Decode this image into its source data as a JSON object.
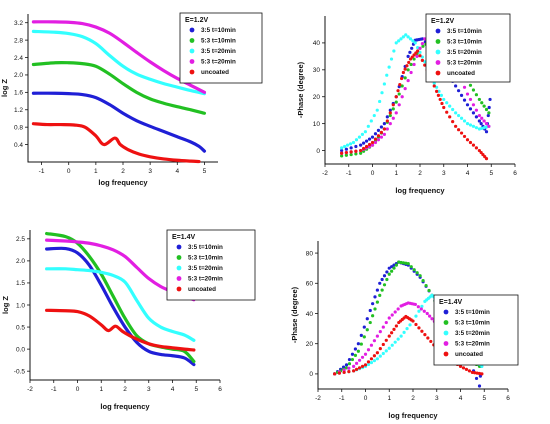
{
  "chart_data": [
    {
      "type": "line",
      "xlabel": "log frequency",
      "ylabel": "log Z",
      "xlim": [
        -1.5,
        5.5
      ],
      "ylim": [
        0,
        3.4
      ],
      "xticks": [
        -1,
        0,
        1,
        2,
        3,
        4,
        5
      ],
      "yticks": [
        0.4,
        0.8,
        1.2,
        1.6,
        2.0,
        2.4,
        2.8,
        3.2
      ],
      "legend_title": "E=1.2V",
      "legend_position": "top-right",
      "series": [
        {
          "name": "3:5 t=10min",
          "color": "#1f1fd6",
          "x": [
            -1.3,
            -0.5,
            0,
            0.5,
            1,
            1.5,
            2,
            2.5,
            3,
            3.5,
            4,
            4.5,
            4.8,
            5.0
          ],
          "y": [
            1.58,
            1.58,
            1.57,
            1.55,
            1.48,
            1.32,
            1.12,
            0.95,
            0.82,
            0.7,
            0.58,
            0.46,
            0.36,
            0.25
          ]
        },
        {
          "name": "5:3 t=10min",
          "color": "#22c022",
          "x": [
            -1.3,
            -0.5,
            0,
            0.5,
            1,
            1.5,
            2,
            2.5,
            3,
            3.5,
            4,
            4.5,
            5.0
          ],
          "y": [
            2.24,
            2.28,
            2.28,
            2.26,
            2.2,
            2.02,
            1.8,
            1.6,
            1.45,
            1.35,
            1.27,
            1.2,
            1.12
          ]
        },
        {
          "name": "3:5 t=20min",
          "color": "#33ffff",
          "x": [
            -1.3,
            -0.5,
            0,
            0.5,
            1,
            1.5,
            2,
            2.5,
            3,
            3.5,
            4,
            4.5,
            5.0
          ],
          "y": [
            3.0,
            2.98,
            2.95,
            2.88,
            2.72,
            2.45,
            2.2,
            2.02,
            1.9,
            1.8,
            1.72,
            1.64,
            1.57
          ]
        },
        {
          "name": "5:3 t=20min",
          "color": "#e21ee2",
          "x": [
            -1.3,
            -0.5,
            0,
            0.5,
            1,
            1.5,
            2,
            2.5,
            3,
            3.5,
            4,
            4.5,
            5.0
          ],
          "y": [
            3.22,
            3.22,
            3.21,
            3.18,
            3.1,
            2.96,
            2.75,
            2.52,
            2.3,
            2.1,
            1.92,
            1.76,
            1.6
          ]
        },
        {
          "name": "uncoated",
          "color": "#ee1111",
          "x": [
            -1.3,
            -0.8,
            -0.3,
            0.2,
            0.6,
            1.0,
            1.3,
            1.7,
            1.9,
            2.2,
            2.6,
            3.0,
            3.5,
            4.0,
            4.5,
            4.8
          ],
          "y": [
            0.88,
            0.86,
            0.86,
            0.85,
            0.8,
            0.6,
            0.4,
            0.55,
            0.4,
            0.28,
            0.18,
            0.12,
            0.07,
            0.04,
            0.02,
            0.01
          ]
        }
      ]
    },
    {
      "type": "scatter",
      "xlabel": "log frequency",
      "ylabel": "-Phase (degree)",
      "xlim": [
        -2,
        6
      ],
      "ylim": [
        -5,
        50
      ],
      "xticks": [
        -2,
        -1,
        0,
        1,
        2,
        3,
        4,
        5,
        6
      ],
      "yticks": [
        0,
        10,
        20,
        30,
        40
      ],
      "legend_title": "E=1.2V",
      "legend_position": "top-right",
      "series": [
        {
          "name": "3:5 t=10min",
          "color": "#1f1fd6",
          "x": [
            -1.3,
            -0.5,
            0,
            0.5,
            1,
            1.5,
            1.8,
            2.1,
            2.6,
            3,
            3.5,
            4,
            4.5,
            4.8,
            4.95
          ],
          "y": [
            0,
            2,
            5,
            10,
            20,
            35,
            41,
            41.5,
            37,
            31,
            24,
            17,
            11,
            7,
            19
          ]
        },
        {
          "name": "5:3 t=10min",
          "color": "#22c022",
          "x": [
            -1.3,
            -0.5,
            0,
            0.5,
            1,
            1.5,
            2,
            2.5,
            3,
            3.5,
            4,
            4.5,
            4.9
          ],
          "y": [
            -2,
            -1,
            2,
            8,
            18,
            30,
            38,
            41,
            39,
            33,
            26,
            19,
            14
          ]
        },
        {
          "name": "3:5 t=20min",
          "color": "#33ffff",
          "x": [
            -1.3,
            -0.8,
            -0.3,
            0.2,
            0.6,
            1.0,
            1.4,
            1.8,
            2.2,
            2.6,
            3,
            3.5,
            4,
            4.5,
            4.9
          ],
          "y": [
            1,
            3,
            7,
            15,
            28,
            40,
            43,
            40,
            33,
            25,
            19,
            14,
            10,
            8,
            9
          ]
        },
        {
          "name": "5:3 t=20min",
          "color": "#e21ee2",
          "x": [
            -1.3,
            -0.5,
            0,
            0.5,
            1,
            1.5,
            2,
            2.4,
            2.7,
            3,
            3.5,
            4,
            4.5,
            4.9
          ],
          "y": [
            -1,
            0,
            2,
            6,
            14,
            26,
            38,
            45,
            45,
            41,
            31,
            21,
            13,
            9
          ]
        },
        {
          "name": "uncoated",
          "color": "#ee1111",
          "x": [
            -1.3,
            -0.5,
            0,
            0.5,
            1,
            1.3,
            1.6,
            1.9,
            2.3,
            2.7,
            3,
            3.5,
            4,
            4.5,
            4.8
          ],
          "y": [
            -1,
            0,
            3,
            8,
            20,
            29,
            34,
            37,
            30,
            22,
            16,
            9,
            4,
            0,
            -3
          ]
        }
      ]
    },
    {
      "type": "line",
      "xlabel": "log frequency",
      "ylabel": "log Z",
      "xlim": [
        -2,
        6
      ],
      "ylim": [
        -0.7,
        2.7
      ],
      "xticks": [
        -2,
        -1,
        0,
        1,
        2,
        3,
        4,
        5,
        6
      ],
      "yticks": [
        -0.5,
        0.0,
        0.5,
        1.0,
        1.5,
        2.0,
        2.5
      ],
      "legend_title": "E=1.4V",
      "legend_position": "top-right",
      "series": [
        {
          "name": "3:5 t=10min",
          "color": "#1f1fd6",
          "x": [
            -1.3,
            -0.5,
            0,
            0.5,
            1,
            1.5,
            2,
            2.5,
            3,
            3.5,
            4,
            4.5,
            4.9
          ],
          "y": [
            2.27,
            2.28,
            2.18,
            1.9,
            1.45,
            0.95,
            0.5,
            0.15,
            -0.05,
            -0.12,
            -0.15,
            -0.2,
            -0.35
          ]
        },
        {
          "name": "5:3 t=10min",
          "color": "#22c022",
          "x": [
            -1.3,
            -0.5,
            0,
            0.5,
            1,
            1.5,
            2,
            2.5,
            3,
            3.5,
            4,
            4.5,
            4.9
          ],
          "y": [
            2.62,
            2.55,
            2.4,
            2.1,
            1.7,
            1.2,
            0.7,
            0.3,
            0.12,
            0.05,
            0.0,
            -0.05,
            -0.28
          ]
        },
        {
          "name": "3:5 t=20min",
          "color": "#33ffff",
          "x": [
            -1.3,
            -0.5,
            0,
            0.5,
            1,
            1.5,
            2,
            2.5,
            3,
            3.5,
            4,
            4.5,
            4.9
          ],
          "y": [
            1.82,
            1.82,
            1.8,
            1.78,
            1.74,
            1.67,
            1.52,
            1.1,
            0.7,
            0.5,
            0.4,
            0.32,
            0.2
          ]
        },
        {
          "name": "5:3 t=20min",
          "color": "#e21ee2",
          "x": [
            -1.3,
            -0.5,
            0,
            0.5,
            1,
            1.5,
            2,
            2.5,
            3,
            3.5,
            4,
            4.5,
            4.9
          ],
          "y": [
            2.47,
            2.45,
            2.43,
            2.4,
            2.34,
            2.25,
            2.1,
            1.85,
            1.6,
            1.42,
            1.3,
            1.2,
            1.12
          ]
        },
        {
          "name": "uncoated",
          "color": "#ee1111",
          "x": [
            -1.3,
            -0.5,
            0,
            0.5,
            1,
            1.3,
            1.6,
            1.9,
            2.4,
            3,
            3.5,
            4,
            4.5,
            4.9
          ],
          "y": [
            0.88,
            0.87,
            0.85,
            0.75,
            0.55,
            0.42,
            0.52,
            0.4,
            0.25,
            0.12,
            0.06,
            0.03,
            0.0,
            -0.02
          ]
        }
      ]
    },
    {
      "type": "scatter",
      "xlabel": "log frequency",
      "ylabel": "-Phase (degree)",
      "xlim": [
        -2,
        6
      ],
      "ylim": [
        -10,
        88
      ],
      "xticks": [
        -2,
        -1,
        0,
        1,
        2,
        3,
        4,
        5,
        6
      ],
      "yticks": [
        0,
        20,
        40,
        60,
        80
      ],
      "legend_title": "E=1.4V",
      "legend_position": "center-right",
      "series": [
        {
          "name": "3:5 t=10min",
          "color": "#1f1fd6",
          "x": [
            -1.3,
            -0.8,
            -0.3,
            0.2,
            0.6,
            1.0,
            1.4,
            1.8,
            2.3,
            2.8,
            3.3,
            3.8,
            4.3,
            4.8,
            4.95
          ],
          "y": [
            0,
            6,
            20,
            42,
            60,
            70,
            74,
            72,
            64,
            52,
            38,
            24,
            12,
            -8,
            18
          ]
        },
        {
          "name": "5:3 t=10min",
          "color": "#22c022",
          "x": [
            -1.3,
            -0.8,
            -0.3,
            0.2,
            0.6,
            1.0,
            1.4,
            1.8,
            2.3,
            2.8,
            3.3,
            3.8,
            4.3,
            4.8
          ],
          "y": [
            0,
            4,
            15,
            34,
            52,
            66,
            74,
            73,
            65,
            52,
            37,
            22,
            10,
            5
          ]
        },
        {
          "name": "3:5 t=20min",
          "color": "#33ffff",
          "x": [
            -1.3,
            -0.5,
            0,
            0.5,
            1,
            1.5,
            2,
            2.5,
            2.8,
            3.1,
            3.5,
            4,
            4.5,
            4.9
          ],
          "y": [
            0,
            2,
            5,
            10,
            17,
            25,
            35,
            48,
            52,
            48,
            35,
            22,
            10,
            5
          ]
        },
        {
          "name": "5:3 t=20min",
          "color": "#e21ee2",
          "x": [
            -1.3,
            -0.5,
            0,
            0.5,
            1,
            1.5,
            1.8,
            2.1,
            2.6,
            3,
            3.5,
            4,
            4.5,
            4.9
          ],
          "y": [
            0,
            5,
            13,
            25,
            37,
            45,
            47,
            46,
            40,
            33,
            24,
            15,
            8,
            10
          ]
        },
        {
          "name": "uncoated",
          "color": "#ee1111",
          "x": [
            -1.3,
            -0.5,
            0,
            0.5,
            1,
            1.4,
            1.7,
            2.0,
            2.5,
            3,
            3.5,
            4,
            4.5,
            4.9
          ],
          "y": [
            0,
            2,
            6,
            14,
            25,
            34,
            38,
            35,
            26,
            17,
            10,
            5,
            1,
            0
          ]
        }
      ]
    }
  ]
}
